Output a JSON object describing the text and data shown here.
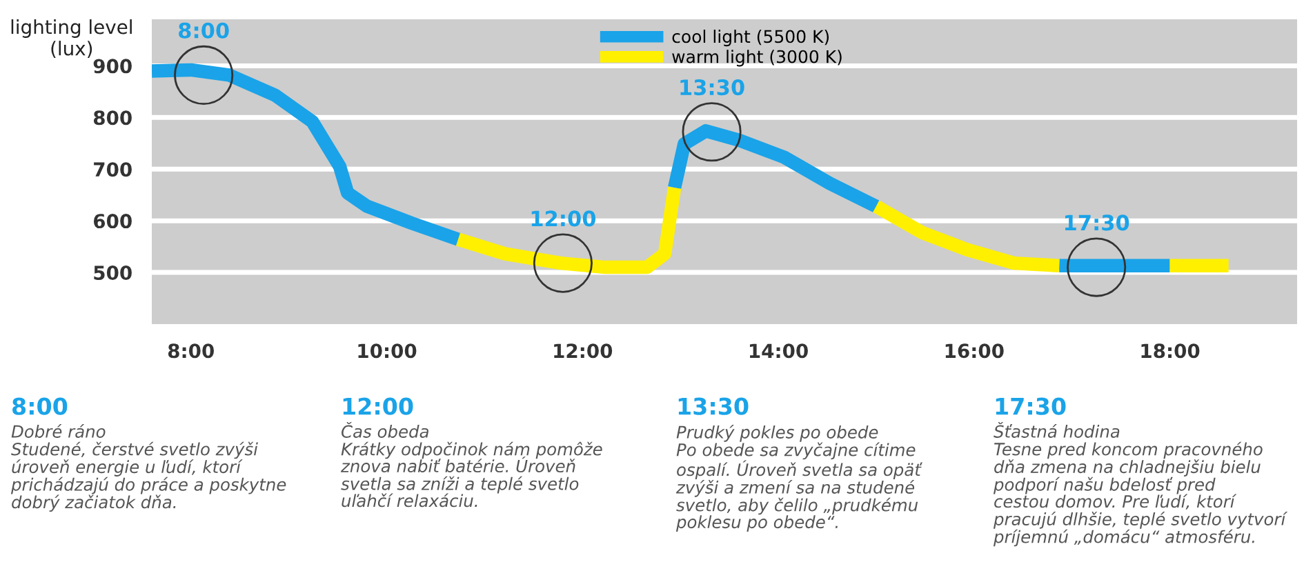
{
  "chart_data": {
    "type": "line",
    "ylabel": "lighting level\n(lux)",
    "x": [
      7.6,
      8.0,
      8.39,
      8.86,
      9.24,
      9.52,
      9.6,
      9.8,
      10.26,
      10.73,
      11.21,
      11.78,
      12.23,
      12.66,
      12.84,
      12.94,
      13.04,
      13.26,
      13.6,
      14.06,
      14.53,
      15.0,
      15.47,
      15.93,
      16.41,
      16.87,
      17.3,
      18.0,
      18.6
    ],
    "series": [
      {
        "name": "cool light (5500 K)",
        "color": "#1aa3e8",
        "values": [
          890,
          892,
          882,
          843,
          792,
          705,
          654,
          628,
          595,
          564,
          null,
          null,
          null,
          null,
          null,
          664,
          749,
          774,
          756,
          723,
          672,
          628,
          null,
          null,
          null,
          513,
          513,
          513,
          null
        ]
      },
      {
        "name": "warm light (3000 K)",
        "color": "#fff000",
        "values": [
          null,
          null,
          null,
          null,
          null,
          null,
          null,
          null,
          null,
          564,
          536,
          518,
          510,
          510,
          536,
          664,
          null,
          null,
          null,
          null,
          null,
          628,
          577,
          544,
          518,
          513,
          null,
          513,
          513
        ]
      }
    ],
    "xlim": [
      7.6,
      19.3
    ],
    "ylim": [
      400,
      990
    ],
    "xticks": [
      {
        "value": 8,
        "label": "8:00"
      },
      {
        "value": 10,
        "label": "10:00"
      },
      {
        "value": 12,
        "label": "12:00"
      },
      {
        "value": 14,
        "label": "14:00"
      },
      {
        "value": 16,
        "label": "16:00"
      },
      {
        "value": 18,
        "label": "18:00"
      }
    ],
    "yticks": [
      500,
      600,
      700,
      800,
      900
    ],
    "grid": "y",
    "legend": "top",
    "marker": "none",
    "line_style": "solid",
    "annotations": [
      {
        "text": "8:00",
        "x": 8.13,
        "y": 882
      },
      {
        "text": "12:00",
        "x": 11.8,
        "y": 518
      },
      {
        "text": "13:30",
        "x": 13.32,
        "y": 772
      },
      {
        "text": "17:30",
        "x": 17.25,
        "y": 510
      },
      "8:00",
      "Dobré ráno\nStudené, čerstvé svetlo zvýši\núroveň energie u ľudí, ktorí\nprichádzajú do práce a poskytne\ndobrý začiatok dňa.",
      "12:00",
      "Čas obeda\nKrátky odpočinok nám pomôže\nznova nabiť batérie. Úroveň\nsvetla sa zníži a teplé svetlo\nuľahčí relaxáciu.",
      "13:30",
      "Prudký pokles po obede\nPo obede sa zvyčajne cítime\nospalí. Úroveň svetla sa opäť\nzvýši a zmení sa na studené\nsvetlo, aby čelilo „prudkému\npoklesu po obede“.",
      "17:30",
      "Šťastná hodina\nTesne pred koncom pracovného\ndňa zmena na chladnejšiu bielu\npodporí našu bdelosť pred\ncestou domov. Pre ľudí, ktorí\npracujú dlhšie, teplé svetlo vytvorí\npríjemnú „domácu“ atmosféru."
    ]
  }
}
